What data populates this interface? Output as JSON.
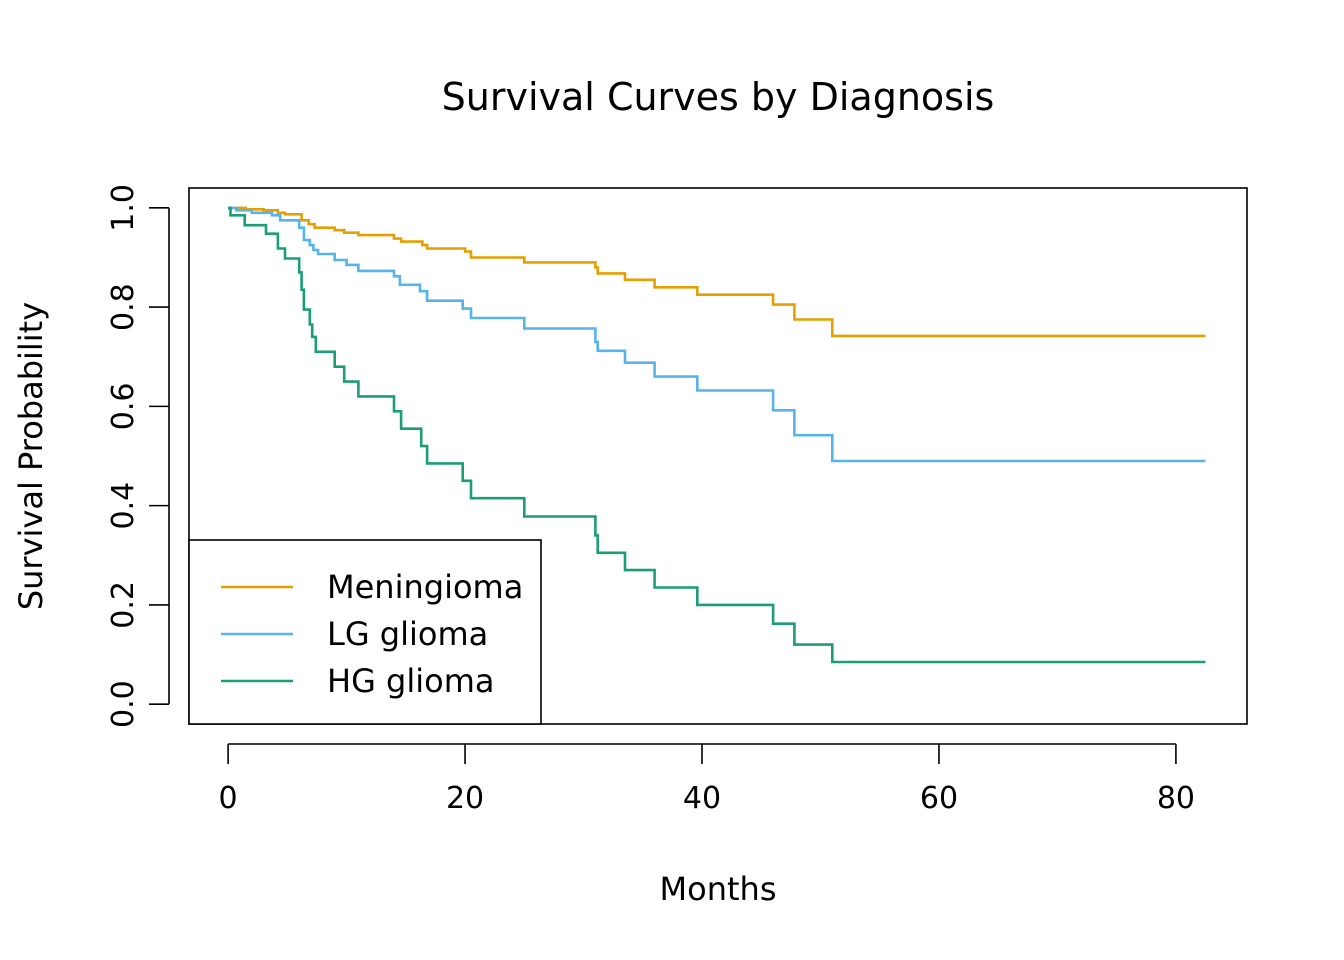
{
  "chart_data": {
    "type": "line",
    "title": "Survival Curves by Diagnosis",
    "xlabel": "Months",
    "ylabel": "Survival Probability",
    "xlim": [
      -3.3,
      86.0
    ],
    "ylim": [
      -0.04,
      1.04
    ],
    "x_ticks": [
      0,
      20,
      40,
      60,
      80
    ],
    "y_ticks": [
      0.0,
      0.2,
      0.4,
      0.6,
      0.8,
      1.0
    ],
    "x_tick_labels": [
      "0",
      "20",
      "40",
      "60",
      "80"
    ],
    "y_tick_labels": [
      "0.0",
      "0.2",
      "0.4",
      "0.6",
      "0.8",
      "1.0"
    ],
    "grid": false,
    "legend_position": "bottom-left",
    "step": true,
    "series": [
      {
        "name": "Meningioma",
        "color": "#E69F00",
        "points": [
          [
            0,
            1.0
          ],
          [
            1.5,
            0.997
          ],
          [
            3,
            0.995
          ],
          [
            4.2,
            0.99
          ],
          [
            4.8,
            0.987
          ],
          [
            6.2,
            0.975
          ],
          [
            6.8,
            0.967
          ],
          [
            7.3,
            0.96
          ],
          [
            9,
            0.955
          ],
          [
            9.8,
            0.95
          ],
          [
            11,
            0.945
          ],
          [
            14,
            0.938
          ],
          [
            14.6,
            0.932
          ],
          [
            16.4,
            0.925
          ],
          [
            16.8,
            0.918
          ],
          [
            20,
            0.912
          ],
          [
            20.5,
            0.9
          ],
          [
            25,
            0.89
          ],
          [
            31,
            0.88
          ],
          [
            31.2,
            0.868
          ],
          [
            33.5,
            0.855
          ],
          [
            36,
            0.84
          ],
          [
            39.6,
            0.825
          ],
          [
            46,
            0.805
          ],
          [
            47.8,
            0.775
          ],
          [
            51,
            0.742
          ],
          [
            82.5,
            0.742
          ]
        ]
      },
      {
        "name": "LG glioma",
        "color": "#56B4E9",
        "points": [
          [
            0,
            1.0
          ],
          [
            0.7,
            0.995
          ],
          [
            2,
            0.99
          ],
          [
            3.7,
            0.985
          ],
          [
            4.4,
            0.975
          ],
          [
            6,
            0.96
          ],
          [
            6.4,
            0.935
          ],
          [
            6.9,
            0.925
          ],
          [
            7.2,
            0.915
          ],
          [
            7.6,
            0.907
          ],
          [
            9,
            0.895
          ],
          [
            10,
            0.885
          ],
          [
            11,
            0.873
          ],
          [
            14,
            0.862
          ],
          [
            14.5,
            0.845
          ],
          [
            16.2,
            0.832
          ],
          [
            16.8,
            0.813
          ],
          [
            19.8,
            0.797
          ],
          [
            20.5,
            0.778
          ],
          [
            25,
            0.757
          ],
          [
            31,
            0.73
          ],
          [
            31.2,
            0.712
          ],
          [
            33.5,
            0.688
          ],
          [
            36,
            0.66
          ],
          [
            39.6,
            0.632
          ],
          [
            46,
            0.592
          ],
          [
            47.8,
            0.542
          ],
          [
            51,
            0.49
          ],
          [
            82.5,
            0.49
          ]
        ]
      },
      {
        "name": "HG glioma",
        "color": "#1B9E77",
        "points": [
          [
            0,
            1.0
          ],
          [
            0.2,
            0.985
          ],
          [
            1.4,
            0.965
          ],
          [
            3.2,
            0.948
          ],
          [
            4.2,
            0.918
          ],
          [
            4.8,
            0.898
          ],
          [
            6.0,
            0.87
          ],
          [
            6.2,
            0.835
          ],
          [
            6.4,
            0.795
          ],
          [
            6.9,
            0.765
          ],
          [
            7.1,
            0.74
          ],
          [
            7.4,
            0.71
          ],
          [
            9,
            0.68
          ],
          [
            9.8,
            0.65
          ],
          [
            11,
            0.62
          ],
          [
            14,
            0.59
          ],
          [
            14.6,
            0.555
          ],
          [
            16.3,
            0.52
          ],
          [
            16.8,
            0.485
          ],
          [
            19.8,
            0.45
          ],
          [
            20.5,
            0.415
          ],
          [
            25,
            0.378
          ],
          [
            31,
            0.34
          ],
          [
            31.2,
            0.305
          ],
          [
            33.5,
            0.27
          ],
          [
            36,
            0.235
          ],
          [
            39.6,
            0.2
          ],
          [
            46,
            0.162
          ],
          [
            47.8,
            0.12
          ],
          [
            51,
            0.085
          ],
          [
            82.5,
            0.085
          ]
        ]
      }
    ]
  }
}
